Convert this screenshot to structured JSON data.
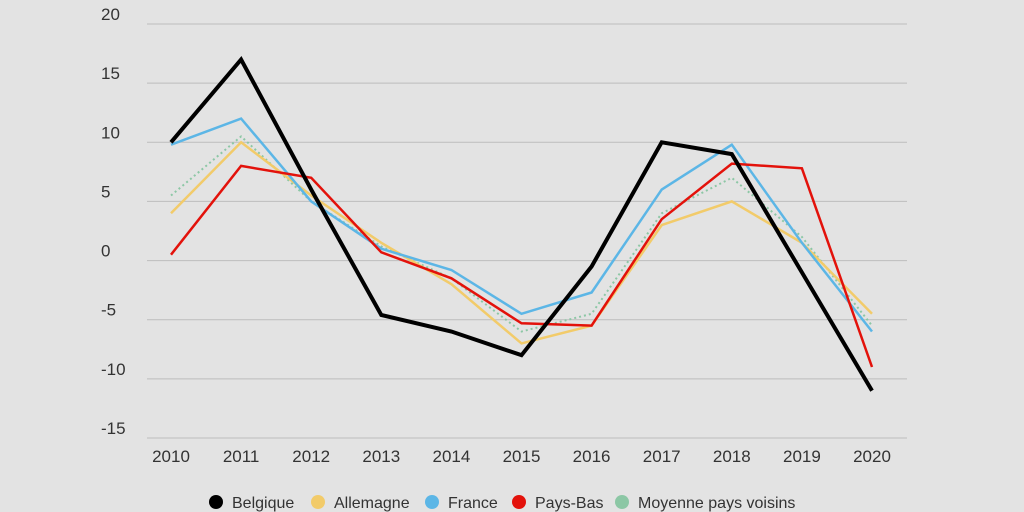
{
  "chart_data": {
    "type": "line",
    "title": "",
    "xlabel": "",
    "ylabel": "",
    "x": [
      "2010",
      "2011",
      "2012",
      "2013",
      "2014",
      "2015",
      "2016",
      "2017",
      "2018",
      "2019",
      "2020"
    ],
    "ylim": [
      -15,
      20
    ],
    "yticks": [
      "20",
      "15",
      "10",
      "5",
      "0",
      "-5",
      "-10",
      "-15"
    ],
    "ytick_values": [
      20,
      15,
      10,
      5,
      0,
      -5,
      -10,
      -15
    ],
    "grid": true,
    "legend_position": "bottom",
    "series": [
      {
        "name": "Belgique",
        "color": "#000000",
        "dash": "solid",
        "values": [
          10,
          17,
          6,
          -4.6,
          -6,
          -8,
          -0.5,
          10,
          9,
          -1,
          -11
        ]
      },
      {
        "name": "Allemagne",
        "color": "#f2cb6a",
        "dash": "solid",
        "values": [
          4,
          10,
          5.5,
          1.5,
          -2,
          -7,
          -5.5,
          3,
          5,
          1.5,
          -4.5
        ]
      },
      {
        "name": "France",
        "color": "#5cb6e6",
        "dash": "solid",
        "values": [
          9.8,
          12,
          5,
          1,
          -0.8,
          -4.5,
          -2.7,
          6,
          9.8,
          1.5,
          -6
        ]
      },
      {
        "name": "Pays-Bas",
        "color": "#e3120b",
        "dash": "solid",
        "values": [
          0.5,
          8,
          7,
          0.7,
          -1.5,
          -5.3,
          -5.5,
          3.5,
          8.2,
          7.8,
          -9
        ]
      },
      {
        "name": "Moyenne pays voisins",
        "color": "#8cc7a5",
        "dash": "dotted",
        "values": [
          5.5,
          10.5,
          5,
          1.2,
          -1.5,
          -6,
          -4.5,
          4,
          7,
          2,
          -5.5
        ]
      }
    ]
  }
}
